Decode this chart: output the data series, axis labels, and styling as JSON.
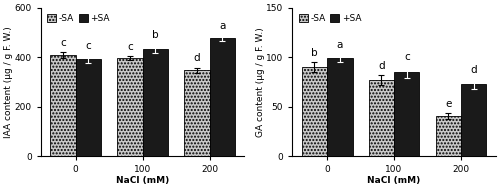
{
  "iaa": {
    "minus_sa": [
      408,
      398,
      348
    ],
    "plus_sa": [
      393,
      435,
      478
    ],
    "minus_sa_err": [
      12,
      8,
      10
    ],
    "plus_sa_err": [
      15,
      18,
      12
    ],
    "minus_sa_labels": [
      "c",
      "c",
      "d"
    ],
    "plus_sa_labels": [
      "c",
      "b",
      "a"
    ],
    "ylabel": "IAA content (μg / g F. W.)",
    "xlabel": "NaCl (mM)",
    "ylim": [
      0,
      600
    ],
    "yticks": [
      0,
      200,
      400,
      600
    ],
    "xtick_labels": [
      "0",
      "100",
      "200"
    ]
  },
  "ga": {
    "minus_sa": [
      90,
      77,
      41
    ],
    "plus_sa": [
      99,
      85,
      73
    ],
    "minus_sa_err": [
      5,
      5,
      3
    ],
    "plus_sa_err": [
      4,
      6,
      5
    ],
    "minus_sa_labels": [
      "b",
      "d",
      "e"
    ],
    "plus_sa_labels": [
      "a",
      "c",
      "d"
    ],
    "ylabel": "GA content (μg / g F. W.)",
    "xlabel": "NaCl (mM)",
    "ylim": [
      0,
      150
    ],
    "yticks": [
      0,
      50,
      100,
      150
    ],
    "xtick_labels": [
      "0",
      "100",
      "200"
    ]
  },
  "legend_labels": [
    "-SA",
    "+SA"
  ],
  "minus_sa_color": "#c8c8c8",
  "plus_sa_color": "#1a1a1a",
  "minus_sa_hatch": ".....",
  "plus_sa_hatch": "",
  "bar_width": 0.38,
  "group_positions": [
    0,
    1,
    2
  ],
  "label_fontsize": 6.5,
  "tick_fontsize": 6.5,
  "legend_fontsize": 6.5,
  "annot_fontsize": 7.5
}
